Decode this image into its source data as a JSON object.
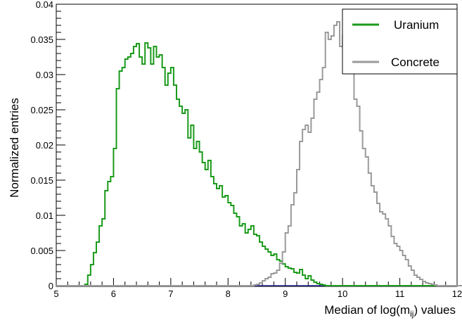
{
  "chart_data": {
    "type": "line",
    "title": "",
    "xlabel": "Median of log(m",
    "xlabel_sub": "ij",
    "xlabel_tail": ") values",
    "ylabel": "Normalized entries",
    "xlim": [
      5,
      12
    ],
    "ylim": [
      0,
      0.04
    ],
    "x_ticks": [
      "5",
      "6",
      "7",
      "8",
      "9",
      "10",
      "11",
      "12"
    ],
    "y_ticks": [
      "0",
      "0.005",
      "0.01",
      "0.015",
      "0.02",
      "0.025",
      "0.03",
      "0.035",
      "0.04"
    ],
    "legend_position": "top-right",
    "bin_start": 5.0,
    "bin_width": 0.05,
    "series": [
      {
        "name": "Uranium",
        "color": "#1a9a1a",
        "values": [
          0,
          0,
          0,
          0,
          0,
          0,
          0,
          0,
          0,
          0,
          0.0002,
          0.0015,
          0.003,
          0.0047,
          0.0062,
          0.0085,
          0.0095,
          0.0135,
          0.0148,
          0.0155,
          0.0195,
          0.028,
          0.0305,
          0.031,
          0.0322,
          0.0325,
          0.033,
          0.034,
          0.0344,
          0.0325,
          0.0315,
          0.0345,
          0.0338,
          0.0315,
          0.034,
          0.0325,
          0.0328,
          0.031,
          0.0285,
          0.0302,
          0.031,
          0.0285,
          0.0265,
          0.0255,
          0.0245,
          0.025,
          0.021,
          0.0228,
          0.0195,
          0.0205,
          0.019,
          0.0175,
          0.0165,
          0.0178,
          0.0155,
          0.0145,
          0.0138,
          0.0142,
          0.0126,
          0.0128,
          0.0118,
          0.0114,
          0.0103,
          0.0098,
          0.0085,
          0.0088,
          0.0075,
          0.008,
          0.0085,
          0.0073,
          0.0071,
          0.0062,
          0.0056,
          0.0052,
          0.0048,
          0.0043,
          0.0045,
          0.0037,
          0.0035,
          0.0031,
          0.0027,
          0.0025,
          0.0024,
          0.0019,
          0.0018,
          0.0023,
          0.0015,
          0.001,
          0.0014,
          0.0008,
          0.0005,
          0.0003,
          0.0002,
          0.0001,
          0,
          0,
          0,
          0,
          0,
          0,
          0,
          0,
          0,
          0,
          0,
          0,
          0,
          0,
          0,
          0,
          0,
          0,
          0,
          0,
          0,
          0,
          0,
          0,
          0,
          0,
          0,
          0,
          0,
          0,
          0,
          0,
          0,
          0,
          0,
          0,
          0,
          0,
          0,
          0,
          0,
          0,
          0,
          0,
          0,
          0
        ]
      },
      {
        "name": "Concrete",
        "color": "#9a9a9a",
        "values": [
          0,
          0,
          0,
          0,
          0,
          0,
          0,
          0,
          0,
          0,
          0,
          0,
          0,
          0,
          0,
          0,
          0,
          0,
          0,
          0,
          0,
          0,
          0,
          0,
          0,
          0,
          0,
          0,
          0,
          0,
          0,
          0,
          0,
          0,
          0,
          0,
          0,
          0,
          0,
          0,
          0,
          0,
          0,
          0,
          0,
          0,
          0,
          0,
          0,
          0,
          0,
          0,
          0,
          0,
          0,
          0,
          0,
          0,
          0,
          0,
          0,
          0,
          0,
          0,
          0,
          0,
          0,
          0,
          0,
          0.0001,
          0.0002,
          0.0004,
          0.0007,
          0.001,
          0.0012,
          0.0017,
          0.0018,
          0.0022,
          0.0032,
          0.0048,
          0.0075,
          0.0085,
          0.0115,
          0.0132,
          0.0165,
          0.0205,
          0.0222,
          0.0228,
          0.0218,
          0.0238,
          0.0265,
          0.0275,
          0.0293,
          0.031,
          0.036,
          0.035,
          0.0355,
          0.037,
          0.0375,
          0.034,
          0.0355,
          0.0345,
          0.0305,
          0.031,
          0.0265,
          0.0255,
          0.022,
          0.0195,
          0.0183,
          0.016,
          0.0142,
          0.0133,
          0.0117,
          0.0105,
          0.0102,
          0.0095,
          0.0085,
          0.007,
          0.006,
          0.0056,
          0.005,
          0.0043,
          0.0037,
          0.0028,
          0.0022,
          0.0015,
          0.0012,
          0.0009,
          0.0006,
          0.0004,
          0.0003,
          0.0002,
          0.0001,
          0,
          0,
          0,
          0,
          0,
          0,
          0,
          0,
          0,
          0,
          0,
          0,
          0,
          0,
          0,
          0,
          0,
          0,
          0,
          0,
          0,
          0,
          0,
          0,
          0,
          0,
          0,
          0,
          0,
          0
        ]
      }
    ]
  }
}
